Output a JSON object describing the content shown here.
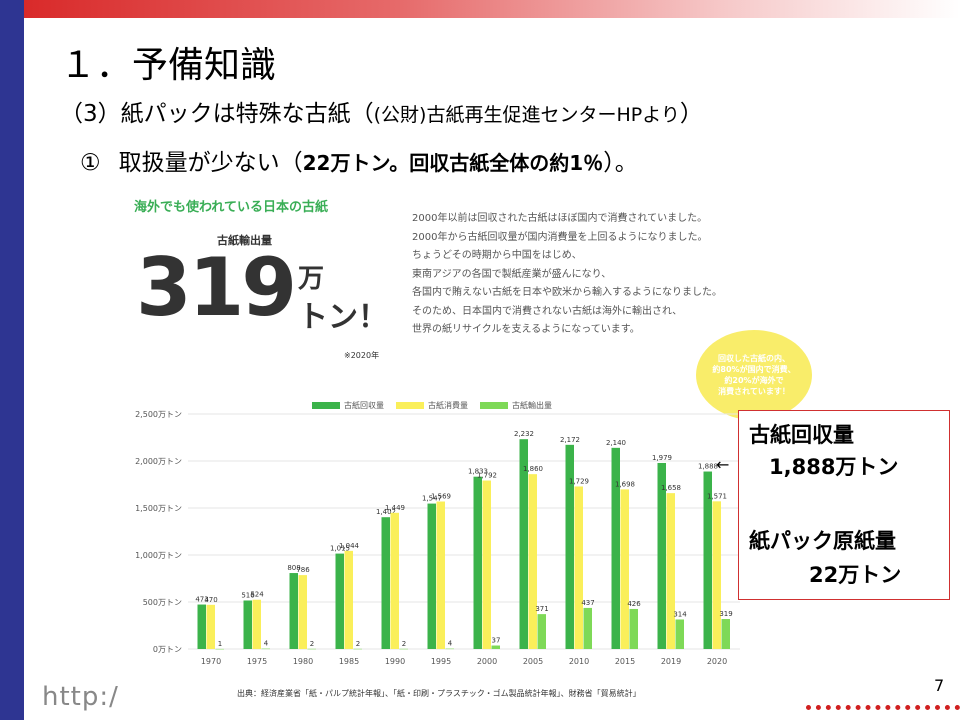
{
  "slide": {
    "title": "１．予備知識",
    "subtitle_main": "（3）紙パックは特殊な古紙（",
    "subtitle_small": "(公財)古紙再生促進センターHPより",
    "subtitle_end": "）",
    "point_num": "①",
    "point_text": "取扱量が少ない（",
    "point_bold": "22万トン。回収古紙全体の約1％",
    "point_end": "）。",
    "url_fragment": "http:/",
    "page_number": "7"
  },
  "colors": {
    "left_bar": "#2e3592",
    "recovered": "#3bb34a",
    "consumed": "#faef5a",
    "exported": "#7ed957",
    "callout_border": "#d03030"
  },
  "infographic": {
    "heading": "海外でも使われている日本の古紙",
    "export_label": "古紙輸出量",
    "big_number": "319",
    "unit_man": "万",
    "unit_ton": "トン！",
    "year_note": "※2020年",
    "paragraph": [
      "2000年以前は回収された古紙はほぼ国内で消費されていました。",
      "2000年から古紙回収量が国内消費量を上回るようになりました。",
      "ちょうどその時期から中国をはじめ、",
      "東南アジアの各国で製紙産業が盛んになり、",
      "各国内で賄えない古紙を日本や欧米から輸入するようになりました。",
      "そのため、日本国内で消費されない古紙は海外に輸出され、",
      "世界の紙リサイクルを支えるようになっています。"
    ],
    "bubble_lines": [
      "回収した古紙の内、",
      "約80%が国内で消費、",
      "約20%が海外で",
      "消費されています！"
    ],
    "source": "出典：経済産業省「紙・パルプ統計年報」、「紙・印刷・プラスチック・ゴム製品統計年報」、財務省「貿易統計」"
  },
  "chart_data": {
    "type": "bar",
    "categories": [
      "1970",
      "1975",
      "1980",
      "1985",
      "1990",
      "1995",
      "2000",
      "2005",
      "2010",
      "2015",
      "2019",
      "2020"
    ],
    "series": [
      {
        "name": "古紙回収量",
        "values": [
          473,
          516,
          808,
          1015,
          1402,
          1547,
          1833,
          2232,
          2172,
          2140,
          1979,
          1888
        ]
      },
      {
        "name": "古紙消費量",
        "values": [
          470,
          524,
          786,
          1044,
          1449,
          1569,
          1792,
          1860,
          1729,
          1698,
          1658,
          1571
        ]
      },
      {
        "name": "古紙輸出量",
        "values": [
          1,
          4,
          2,
          2,
          2,
          4,
          37,
          371,
          437,
          426,
          314,
          319
        ]
      }
    ],
    "ytick_labels": [
      "0万トン",
      "500万トン",
      "1,000万トン",
      "1,500万トン",
      "2,000万トン",
      "2,500万トン"
    ],
    "yticks": [
      0,
      500,
      1000,
      1500,
      2000,
      2500
    ],
    "ylim": [
      0,
      2500
    ],
    "value_labels": [
      [
        "473",
        "516",
        "808",
        "1,015",
        "1,402",
        "1,547",
        "1,833",
        "2,232",
        "2,172",
        "2,140",
        "1,979",
        "1,888"
      ],
      [
        "470",
        "524",
        "786",
        "1,044",
        "1,449",
        "1,569",
        "1,792",
        "1,860",
        "1,729",
        "1,698",
        "1,658",
        "1,571"
      ],
      [
        "1",
        "4",
        "2",
        "2",
        "2",
        "4",
        "37",
        "371",
        "437",
        "426",
        "314",
        "319"
      ]
    ],
    "legend_position": "top",
    "grid": true
  },
  "callout": {
    "line1": "古紙回収量",
    "line2": "1,888万トン",
    "line3": "紙パック原紙量",
    "line4": "22万トン",
    "arrow": "←"
  }
}
